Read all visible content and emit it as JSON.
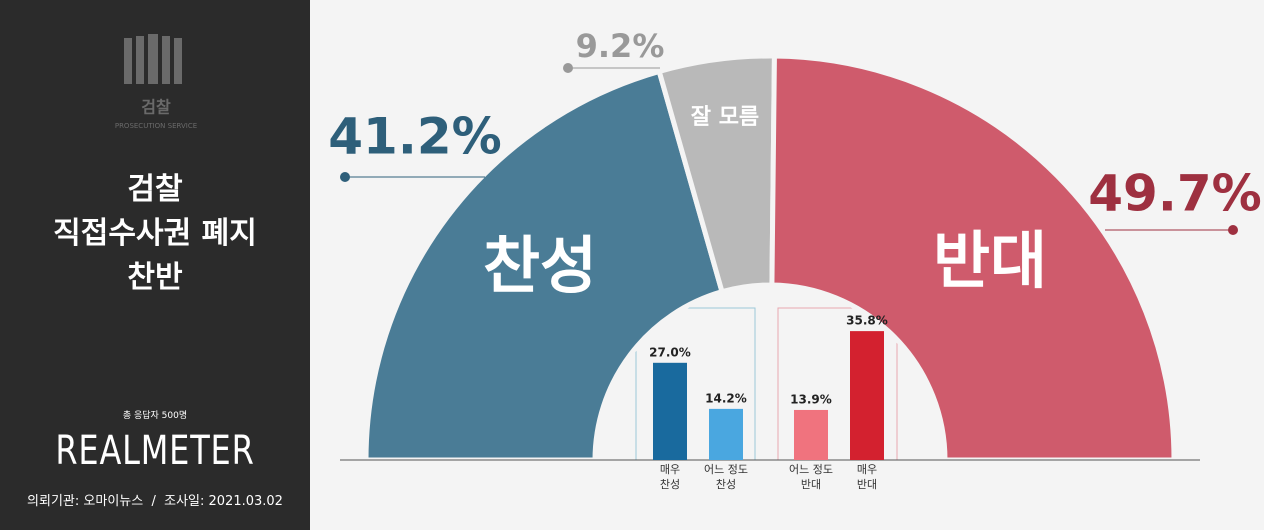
{
  "sidebar": {
    "logo_title": "검찰",
    "logo_subtitle": "PROSECUTION SERVICE",
    "title_lines": [
      "검찰",
      "직접수사권 폐지",
      "찬반"
    ],
    "respondents": "총 응답자 500명",
    "brand": "REALMETER",
    "footer": "의뢰기관: 오마이뉴스  /  조사일: 2021.03.02"
  },
  "chart_data": [
    {
      "type": "semi_donut",
      "categories": [
        "찬성",
        "잘 모름",
        "반대"
      ],
      "values": [
        41.2,
        9.2,
        49.7
      ],
      "value_labels": [
        "41.2%",
        "9.2%",
        "49.7%"
      ],
      "colors": [
        "#4a7c96",
        "#b9b9b9",
        "#cf5b6c"
      ]
    },
    {
      "type": "bar",
      "categories": [
        [
          "매우",
          "찬성"
        ],
        [
          "어느 정도",
          "찬성"
        ],
        [
          "어느 정도",
          "반대"
        ],
        [
          "매우",
          "반대"
        ]
      ],
      "values": [
        27.0,
        14.2,
        13.9,
        35.8
      ],
      "value_labels": [
        "27.0%",
        "14.2%",
        "13.9%",
        "35.8%"
      ],
      "colors": [
        "#196a9e",
        "#4aa7e0",
        "#f0737e",
        "#d3212f"
      ]
    }
  ]
}
